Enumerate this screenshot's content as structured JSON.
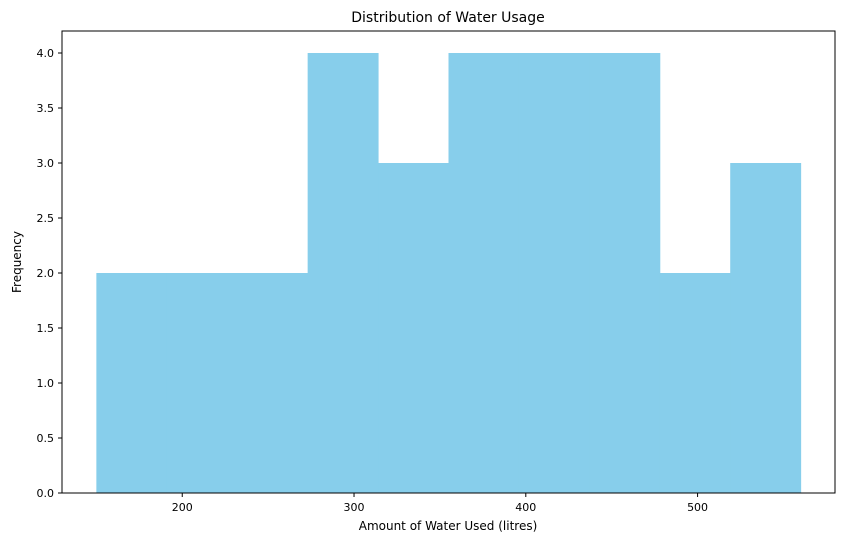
{
  "chart_data": {
    "type": "bar",
    "title": "Distribution of Water Usage",
    "xlabel": "Amount of Water Used (litres)",
    "ylabel": "Frequency",
    "bins": [
      {
        "start": 150,
        "end": 191,
        "count": 2
      },
      {
        "start": 191,
        "end": 232,
        "count": 2
      },
      {
        "start": 232,
        "end": 273,
        "count": 2
      },
      {
        "start": 273,
        "end": 314,
        "count": 4
      },
      {
        "start": 314,
        "end": 355,
        "count": 3
      },
      {
        "start": 355,
        "end": 396,
        "count": 4
      },
      {
        "start": 396,
        "end": 437,
        "count": 4
      },
      {
        "start": 437,
        "end": 478,
        "count": 4
      },
      {
        "start": 478,
        "end": 519,
        "count": 2
      },
      {
        "start": 519,
        "end": 560,
        "count": 3
      }
    ],
    "xlim": [
      130,
      580
    ],
    "ylim": [
      0,
      4.2
    ],
    "xticks": [
      200,
      300,
      400,
      500
    ],
    "yticks": [
      "0.0",
      "0.5",
      "1.0",
      "1.5",
      "2.0",
      "2.5",
      "3.0",
      "3.5",
      "4.0"
    ],
    "bar_color": "#87CEEB",
    "grid": false,
    "legend": "none"
  }
}
